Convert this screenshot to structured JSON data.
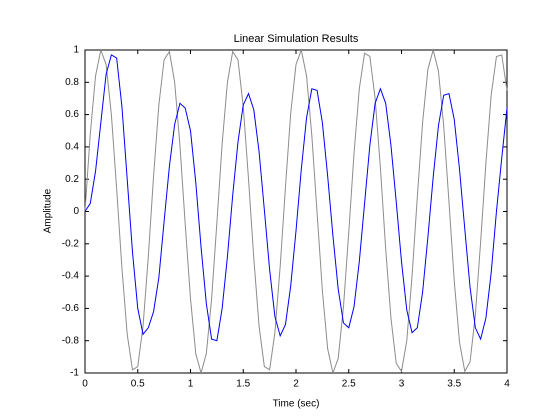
{
  "chart_data": {
    "type": "line",
    "title": "Linear Simulation Results",
    "xlabel": "Time (sec)",
    "ylabel": "Amplitude",
    "x": [
      0,
      0.05,
      0.1,
      0.15,
      0.2,
      0.25,
      0.3,
      0.35,
      0.4,
      0.45,
      0.5,
      0.55,
      0.6,
      0.65,
      0.7,
      0.75,
      0.8,
      0.85,
      0.9,
      0.95,
      1,
      1.05,
      1.1,
      1.15,
      1.2,
      1.25,
      1.3,
      1.35,
      1.4,
      1.45,
      1.5,
      1.55,
      1.6,
      1.65,
      1.7,
      1.75,
      1.8,
      1.85,
      1.9,
      1.95,
      2,
      2.05,
      2.1,
      2.15,
      2.2,
      2.25,
      2.3,
      2.35,
      2.4,
      2.45,
      2.5,
      2.55,
      2.6,
      2.65,
      2.7,
      2.75,
      2.8,
      2.85,
      2.9,
      2.95,
      3,
      3.05,
      3.1,
      3.15,
      3.2,
      3.25,
      3.3,
      3.35,
      3.4,
      3.45,
      3.5,
      3.55,
      3.6,
      3.65,
      3.7,
      3.75,
      3.8,
      3.85,
      3.9,
      3.95,
      4
    ],
    "series": [
      {
        "color": "#8c8c8c",
        "values": [
          0,
          0.48,
          0.84,
          1,
          0.91,
          0.6,
          0.14,
          -0.35,
          -0.76,
          -0.98,
          -0.96,
          -0.71,
          -0.28,
          0.22,
          0.66,
          0.94,
          0.99,
          0.8,
          0.41,
          -0.08,
          -0.54,
          -0.88,
          -1,
          -0.88,
          -0.54,
          -0.07,
          0.42,
          0.8,
          0.99,
          0.94,
          0.65,
          0.2,
          -0.29,
          -0.71,
          -0.96,
          -0.98,
          -0.75,
          -0.34,
          0.15,
          0.61,
          0.91,
          1,
          0.84,
          0.47,
          -0.01,
          -0.49,
          -0.85,
          -1,
          -0.91,
          -0.59,
          -0.13,
          0.36,
          0.76,
          0.98,
          0.96,
          0.7,
          0.27,
          -0.23,
          -0.66,
          -0.94,
          -0.99,
          -0.8,
          -0.4,
          0.09,
          0.55,
          0.88,
          1,
          0.87,
          0.53,
          0.06,
          -0.43,
          -0.81,
          -0.99,
          -0.93,
          -0.64,
          -0.19,
          0.3,
          0.72,
          0.96,
          0.97,
          0.75
        ]
      },
      {
        "color": "#0000ff",
        "values": [
          0,
          0.05,
          0.25,
          0.55,
          0.85,
          0.97,
          0.95,
          0.65,
          0.2,
          -0.25,
          -0.6,
          -0.76,
          -0.72,
          -0.62,
          -0.41,
          -0.06,
          0.28,
          0.54,
          0.67,
          0.64,
          0.5,
          0.18,
          -0.22,
          -0.57,
          -0.79,
          -0.8,
          -0.6,
          -0.28,
          0.1,
          0.43,
          0.66,
          0.73,
          0.63,
          0.37,
          0.01,
          -0.36,
          -0.65,
          -0.77,
          -0.7,
          -0.46,
          -0.12,
          0.26,
          0.58,
          0.76,
          0.75,
          0.55,
          0.22,
          -0.15,
          -0.48,
          -0.69,
          -0.72,
          -0.59,
          -0.31,
          0.05,
          0.41,
          0.67,
          0.76,
          0.67,
          0.41,
          0.06,
          -0.31,
          -0.61,
          -0.75,
          -0.72,
          -0.5,
          -0.16,
          0.21,
          0.53,
          0.72,
          0.73,
          0.57,
          0.26,
          -0.11,
          -0.47,
          -0.72,
          -0.79,
          -0.66,
          -0.38,
          0,
          0.33,
          0.64
        ]
      }
    ],
    "xlim": [
      0,
      4
    ],
    "xticks": [
      0,
      0.5,
      1,
      1.5,
      2,
      2.5,
      3,
      3.5,
      4
    ],
    "ylim": [
      -1,
      1
    ],
    "yticks": [
      -1,
      -0.8,
      -0.6,
      -0.4,
      -0.2,
      0,
      0.2,
      0.4,
      0.6,
      0.8,
      1
    ]
  }
}
